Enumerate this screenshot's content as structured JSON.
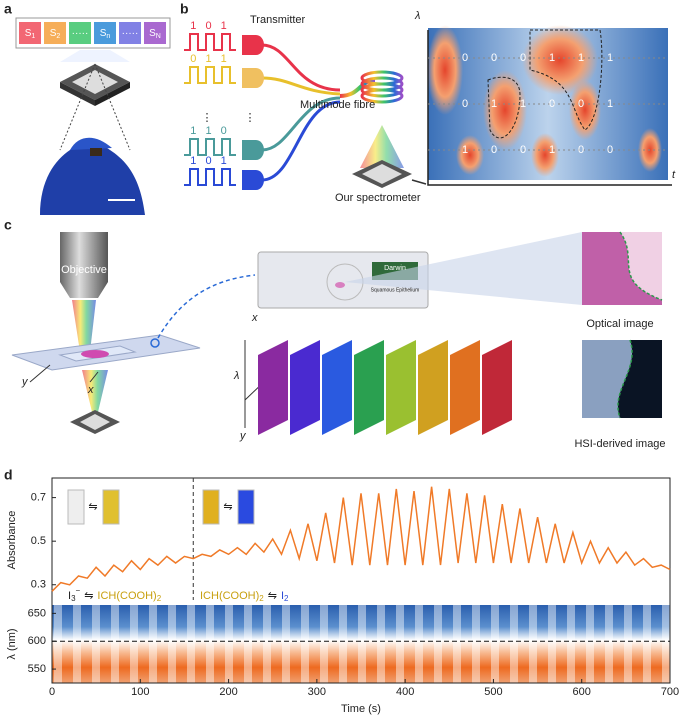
{
  "panel_labels": [
    "a",
    "b",
    "c",
    "d"
  ],
  "panel_a": {
    "channels": [
      {
        "base": "S",
        "sub": "1"
      },
      {
        "base": "S",
        "sub": "2"
      },
      {
        "base": "·····"
      },
      {
        "base": "S",
        "sub": "n"
      },
      {
        "base": "·····"
      },
      {
        "base": "S",
        "sub": "N"
      }
    ]
  },
  "panel_b": {
    "transmitter": "Transmitter",
    "fibre": "Multimode fibre",
    "spectrometer": "Our spectrometer",
    "codes": [
      "1 0 1",
      "0 1 1",
      "1 1 0",
      "1 0 1"
    ],
    "ellipsis": "⋮",
    "axis_y": "λ",
    "axis_x": "t",
    "bit_rows": [
      [
        "0",
        "0",
        "0",
        "1",
        "1",
        "1"
      ],
      [
        "0",
        "1",
        "1",
        "0",
        "0",
        "1"
      ],
      [
        "1",
        "0",
        "0",
        "1",
        "0",
        "0"
      ]
    ]
  },
  "panel_c": {
    "objective": "Objective",
    "slide_brand": "Darwin",
    "slide_text": "Squamous Epithelium",
    "axis_x": "x",
    "axis_y": "y",
    "axis_lambda": "λ",
    "optical": "Optical image",
    "hsi": "HSI-derived image"
  },
  "chart_data": {
    "type": "line",
    "ylabel": "Absorbance",
    "xlabel": "Time (s)",
    "color": "#f07a28",
    "x": [
      0,
      10,
      20,
      30,
      40,
      50,
      60,
      70,
      80,
      90,
      100,
      110,
      120,
      130,
      140,
      150,
      160,
      170,
      180,
      190,
      200,
      210,
      220,
      230,
      240,
      250,
      260,
      270,
      280,
      290,
      300,
      310,
      320,
      330,
      340,
      350,
      360,
      370,
      380,
      390,
      400,
      410,
      420,
      430,
      440,
      450,
      460,
      470,
      480,
      490,
      500,
      510,
      520,
      530,
      540,
      550,
      560,
      570,
      580,
      590,
      600,
      610,
      620,
      630,
      640,
      650,
      660,
      670,
      680,
      690,
      700
    ],
    "values": [
      0.27,
      0.31,
      0.3,
      0.34,
      0.33,
      0.38,
      0.34,
      0.39,
      0.36,
      0.41,
      0.37,
      0.42,
      0.39,
      0.43,
      0.4,
      0.43,
      0.42,
      0.44,
      0.43,
      0.46,
      0.44,
      0.47,
      0.44,
      0.49,
      0.45,
      0.51,
      0.44,
      0.55,
      0.42,
      0.58,
      0.41,
      0.63,
      0.4,
      0.7,
      0.39,
      0.72,
      0.39,
      0.72,
      0.39,
      0.74,
      0.39,
      0.73,
      0.39,
      0.75,
      0.39,
      0.74,
      0.4,
      0.72,
      0.4,
      0.71,
      0.4,
      0.67,
      0.4,
      0.65,
      0.4,
      0.61,
      0.4,
      0.58,
      0.4,
      0.54,
      0.4,
      0.5,
      0.4,
      0.47,
      0.4,
      0.45,
      0.39,
      0.42,
      0.38,
      0.39,
      0.37
    ],
    "xlim": [
      0,
      700
    ],
    "xticks": [
      0,
      100,
      200,
      300,
      400,
      500,
      600,
      700
    ],
    "ylim": [
      0.23,
      0.79
    ],
    "yticks": [
      0.3,
      0.5,
      0.7
    ],
    "divider_x": 160,
    "reaction_1": {
      "reactant": "I",
      "reactant_sub": "3",
      "reactant_sup": "−",
      "arrow": "⇋",
      "product": "ICH(COOH)",
      "product_sub": "2"
    },
    "reaction_2": {
      "reactant": "ICH(COOH)",
      "reactant_sub": "2",
      "arrow": "⇋",
      "product": "I",
      "product_sub": "2"
    },
    "heatmap": {
      "ylabel": "λ (nm)",
      "ylim": [
        525,
        665
      ],
      "yticks": [
        550,
        600,
        650
      ],
      "line_y": 600
    }
  }
}
